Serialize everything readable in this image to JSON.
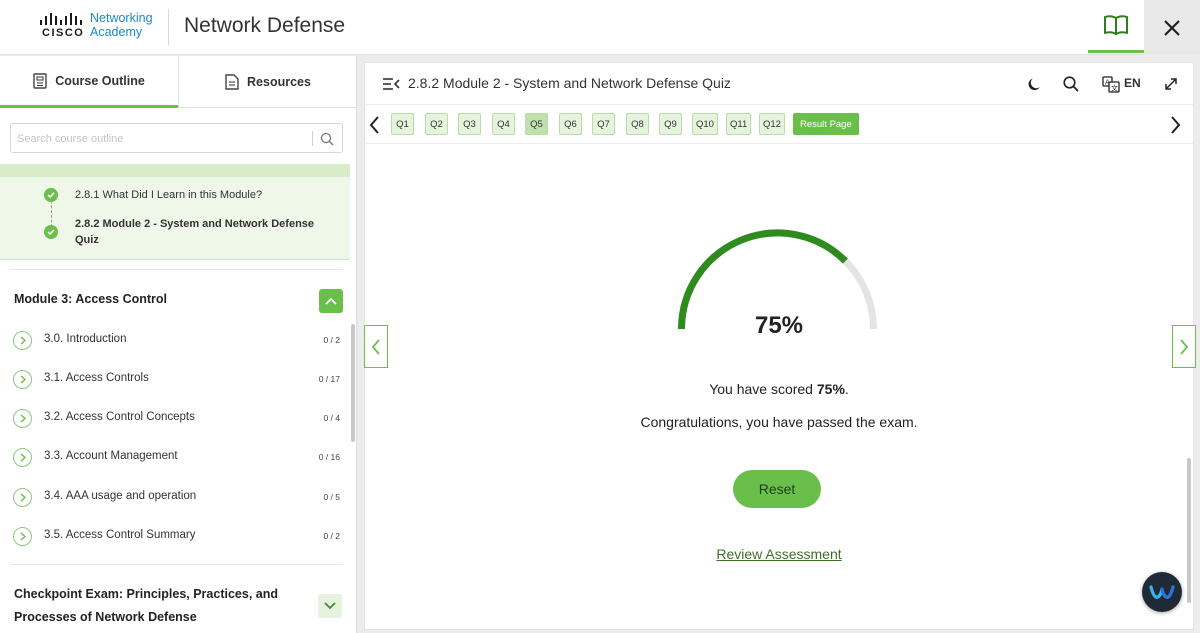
{
  "header": {
    "logo_brand": "CISCO",
    "logo_line1": "Networking",
    "logo_line2": "Academy",
    "app_title": "Network Defense",
    "book_icon": "book-icon",
    "close_icon": "close-icon"
  },
  "sidebar": {
    "tabs": [
      {
        "label": "Course Outline",
        "icon": "document-icon",
        "active": true
      },
      {
        "label": "Resources",
        "icon": "file-icon",
        "active": false
      }
    ],
    "search_placeholder": "Search course outline",
    "completed_items": [
      {
        "label": "2.8.1 What Did I Learn in this Module?",
        "status": "complete"
      },
      {
        "label": "2.8.2 Module 2 - System and Network Defense Quiz",
        "status": "complete",
        "current": true
      }
    ],
    "module": {
      "title": "Module 3: Access Control",
      "items": [
        {
          "label": "3.0. Introduction",
          "count": "0 / 2"
        },
        {
          "label": "3.1. Access Controls",
          "count": "0 / 17"
        },
        {
          "label": "3.2. Access Control Concepts",
          "count": "0 / 4"
        },
        {
          "label": "3.3. Account Management",
          "count": "0 / 16"
        },
        {
          "label": "3.4. AAA usage and operation",
          "count": "0 / 5"
        },
        {
          "label": "3.5. Access Control Summary",
          "count": "0 / 2"
        }
      ]
    },
    "checkpoint_title": "Checkpoint Exam: Principles, Practices, and Processes of Network Defense"
  },
  "main": {
    "title": "2.8.2 Module 2 - System and Network Defense Quiz",
    "language": "EN",
    "questions": [
      "Q1",
      "Q2",
      "Q3",
      "Q4",
      "Q5",
      "Q6",
      "Q7",
      "Q8",
      "Q9",
      "Q10",
      "Q11",
      "Q12"
    ],
    "current_question": "Q5",
    "result_label": "Result Page",
    "score_fraction": 0.75,
    "score_percent": "75%",
    "score_prefix": "You have scored ",
    "score_bold": "75%",
    "score_suffix": ".",
    "congrats": "Congratulations, you have passed the exam.",
    "reset_label": "Reset",
    "review_label": "Review Assessment",
    "colors": {
      "accent": "#6abf4b",
      "gauge_fill": "#2e8b1e",
      "gauge_track": "#e4e4e4"
    }
  }
}
